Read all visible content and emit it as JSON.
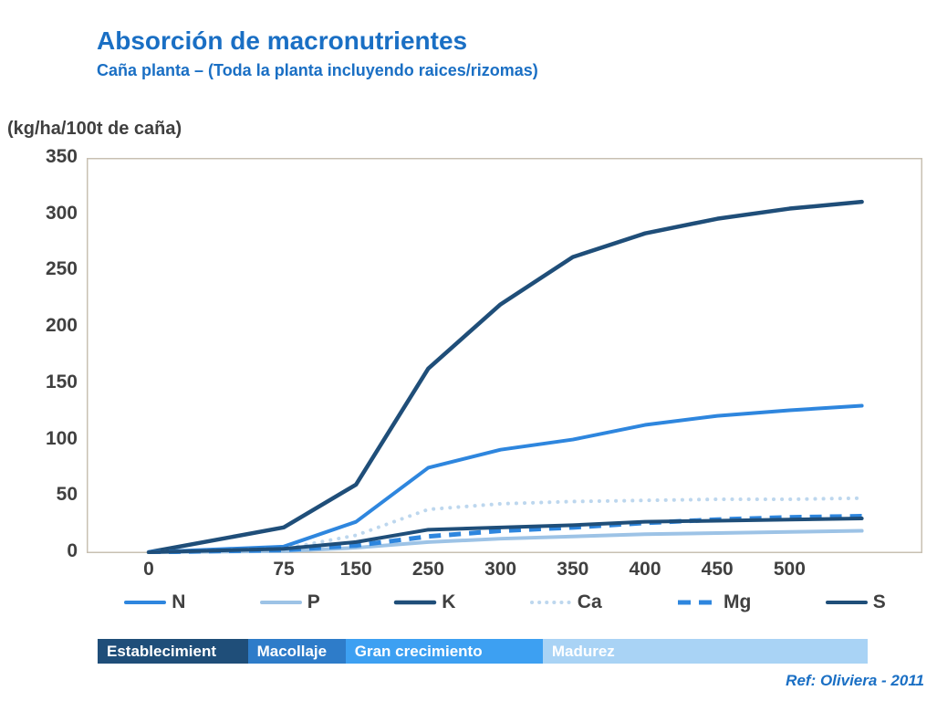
{
  "header": {
    "title": "Absorción de macronutrientes",
    "subtitle": "Caña planta – (Toda la planta incluyendo raices/rizomas)"
  },
  "unit_label": "(kg/ha/100t de caña)",
  "footer": {
    "ref": "Ref: Oliviera - 2011"
  },
  "phases": [
    {
      "label": "Establecimient",
      "color": "#1F4E79",
      "width_pct": 19.5
    },
    {
      "label": "Macollaje",
      "color": "#2E7CC9",
      "width_pct": 12.7
    },
    {
      "label": "Gran crecimiento",
      "color": "#3DA0F2",
      "width_pct": 25.6
    },
    {
      "label": "Madurez",
      "color": "#A9D3F5",
      "width_pct": 42.2
    }
  ],
  "chart_data": {
    "type": "line",
    "title": "Absorción de macronutrientes",
    "subtitle": "Caña planta – (Toda la planta incluyendo raices/rizomas)",
    "ylabel": "(kg/ha/100t de caña)",
    "x_tick_labels": [
      "0",
      "75",
      "150",
      "250",
      "300",
      "350",
      "400",
      "450",
      "500"
    ],
    "y_ticks": [
      0,
      50,
      100,
      150,
      200,
      250,
      300,
      350
    ],
    "ylim": [
      0,
      350
    ],
    "grid": false,
    "legend_position": "bottom",
    "series": [
      {
        "name": "N",
        "color": "#2E86DE",
        "style": "solid",
        "stroke_width": 4,
        "values": [
          0,
          5,
          27,
          75,
          91,
          100,
          113,
          121,
          126,
          130
        ]
      },
      {
        "name": "P",
        "color": "#9DC3E6",
        "style": "solid",
        "stroke_width": 4,
        "values": [
          0,
          1,
          4,
          9,
          12,
          14,
          16,
          17,
          18,
          19
        ]
      },
      {
        "name": "K",
        "color": "#1F4E79",
        "style": "solid",
        "stroke_width": 4.5,
        "values": [
          0,
          22,
          60,
          163,
          220,
          262,
          283,
          296,
          305,
          311
        ]
      },
      {
        "name": "Ca",
        "color": "#BDD7EE",
        "style": "dotted",
        "stroke_width": 4,
        "values": [
          0,
          3,
          15,
          38,
          43,
          45,
          46,
          47,
          47,
          48
        ]
      },
      {
        "name": "Mg",
        "color": "#2E86DE",
        "style": "dashed",
        "stroke_width": 5,
        "values": [
          0,
          2,
          6,
          14,
          19,
          22,
          26,
          29,
          31,
          32
        ]
      },
      {
        "name": "S",
        "color": "#1F4E79",
        "style": "solid",
        "stroke_width": 4,
        "values": [
          0,
          3,
          9,
          20,
          22,
          24,
          27,
          28,
          29,
          30
        ]
      }
    ]
  }
}
